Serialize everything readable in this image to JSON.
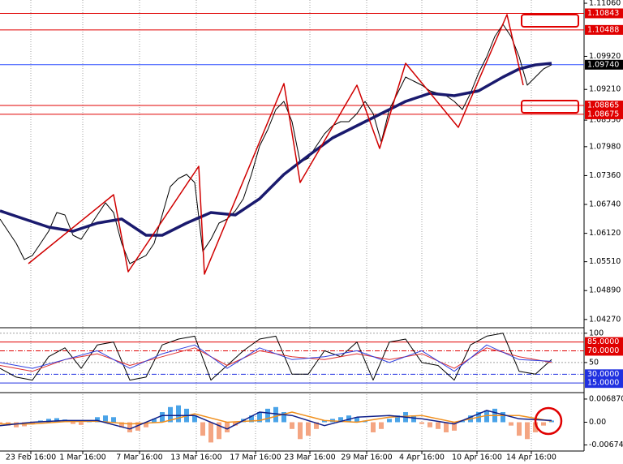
{
  "chart_data": [
    {
      "type": "line",
      "ylim": [
        1.0411,
        1.1113
      ],
      "yticks": [
        {
          "value": 1.1106,
          "label": "1.11060"
        },
        {
          "value": 1.0992,
          "label": "1.09920"
        },
        {
          "value": 1.0921,
          "label": "1.09210"
        },
        {
          "value": 1.0855,
          "label": "1.08550"
        },
        {
          "value": 1.0798,
          "label": "1.07980"
        },
        {
          "value": 1.0736,
          "label": "1.07360"
        },
        {
          "value": 1.0674,
          "label": "1.06740"
        },
        {
          "value": 1.0612,
          "label": "1.06120"
        },
        {
          "value": 1.0551,
          "label": "1.05510"
        },
        {
          "value": 1.0489,
          "label": "1.04890"
        },
        {
          "value": 1.0427,
          "label": "1.04270"
        }
      ],
      "levels": [
        {
          "value": 1.10843,
          "color": "#e00000",
          "text_color": "#ffffff"
        },
        {
          "value": 1.10488,
          "color": "#e00000",
          "text_color": "#ffffff"
        },
        {
          "value": 1.0974,
          "label": "1.09740",
          "color": "#3050ff",
          "box": "#000000",
          "text_color": "#ffffff"
        },
        {
          "value": 1.08865,
          "color": "#e00000",
          "text_color": "#ffffff"
        },
        {
          "value": 1.08675,
          "color": "#e00000",
          "text_color": "#ffffff"
        }
      ],
      "series": [
        {
          "color": "#000000",
          "width": 1,
          "x": [
            0,
            1,
            2,
            3,
            4,
            5,
            6,
            7,
            8,
            9,
            10,
            11,
            12,
            13,
            14,
            15,
            16,
            17,
            18,
            19,
            20,
            21,
            22,
            23,
            24,
            25,
            26,
            27,
            28,
            29,
            30,
            31,
            32,
            33,
            34,
            35,
            36,
            37,
            38,
            39,
            40,
            41,
            42,
            43,
            44,
            45,
            46,
            47,
            48,
            49,
            50,
            51,
            52,
            53,
            54,
            55,
            56,
            57,
            58,
            59,
            60,
            61,
            62,
            63,
            64,
            65,
            66,
            67,
            68
          ],
          "values": [
            1.06427,
            1.06166,
            1.05905,
            1.05557,
            1.05644,
            1.05905,
            1.06166,
            1.06567,
            1.06514,
            1.06079,
            1.05992,
            1.06253,
            1.06514,
            1.06776,
            1.06567,
            1.05905,
            1.05469,
            1.05557,
            1.05644,
            1.05905,
            1.06514,
            1.07124,
            1.07298,
            1.07385,
            1.07211,
            1.05731,
            1.05992,
            1.0634,
            1.06427,
            1.06601,
            1.06863,
            1.07385,
            1.07994,
            1.08343,
            1.08778,
            1.08953,
            1.08517,
            1.07646,
            1.07734,
            1.07994,
            1.08256,
            1.0843,
            1.08517,
            1.08517,
            1.08691,
            1.08953,
            1.08691,
            1.08082,
            1.08778,
            1.09127,
            1.09475,
            1.09388,
            1.09301,
            1.09179,
            1.09127,
            1.09075,
            1.08953,
            1.08778,
            1.09127,
            1.09562,
            1.09911,
            1.10346,
            1.10607,
            1.10346,
            1.09911,
            1.09301,
            1.09475,
            1.09649,
            1.0974
          ]
        },
        {
          "color": "#1a1a6e",
          "width": 3.5,
          "x": [
            0,
            3,
            6,
            9,
            12,
            15,
            18,
            20,
            23,
            26,
            29,
            32,
            35,
            38,
            41,
            44,
            47,
            50,
            53,
            56,
            59,
            62,
            64,
            66,
            68
          ],
          "values": [
            1.06602,
            1.06427,
            1.06253,
            1.06166,
            1.0634,
            1.06427,
            1.06079,
            1.06079,
            1.0634,
            1.06567,
            1.06514,
            1.06863,
            1.07385,
            1.07786,
            1.08169,
            1.0843,
            1.08691,
            1.08953,
            1.09127,
            1.09075,
            1.09179,
            1.09475,
            1.09649,
            1.09736,
            1.09771
          ]
        },
        {
          "color": "#d00000",
          "width": 1.5,
          "x": [
            3.5,
            14,
            15.8,
            24.5,
            25.2,
            35,
            37,
            44,
            46.8,
            50,
            56.5,
            62.5,
            64.5
          ],
          "values": [
            1.05469,
            1.0695,
            1.05295,
            1.07559,
            1.05243,
            1.09336,
            1.07211,
            1.09301,
            1.07943,
            1.09771,
            1.08395,
            1.10816,
            1.09301
          ]
        }
      ]
    },
    {
      "type": "line",
      "ylim": [
        0,
        108
      ],
      "yticks": [
        100,
        50
      ],
      "levels": [
        {
          "value": 85,
          "label": "85.0000",
          "color": "#e00000",
          "box": "#e00000",
          "text_color": "#ffffff"
        },
        {
          "value": 70,
          "label": "70.0000",
          "color": "#e00000",
          "box": "#e00000",
          "text_color": "#ffffff",
          "dash": "6 2 1 2"
        },
        {
          "value": 30,
          "label": "30.0000",
          "color": "#2030e0",
          "box": "#2030e0",
          "text_color": "#ffffff",
          "dash": "6 2 1 2"
        },
        {
          "value": 15,
          "label": "15.0000",
          "color": "#2030e0",
          "box": "#2030e0",
          "text_color": "#ffffff"
        }
      ],
      "series": [
        {
          "color": "#000000",
          "width": 1,
          "x": [
            0,
            2,
            4,
            6,
            8,
            10,
            12,
            14,
            16,
            18,
            20,
            22,
            24,
            26,
            28,
            30,
            32,
            34,
            36,
            38,
            40,
            42,
            44,
            46,
            48,
            50,
            52,
            54,
            56,
            58,
            60,
            62,
            64,
            66,
            68
          ],
          "values": [
            40,
            25,
            20,
            60,
            75,
            40,
            80,
            85,
            20,
            25,
            80,
            90,
            95,
            20,
            45,
            70,
            90,
            95,
            30,
            30,
            70,
            60,
            85,
            20,
            85,
            90,
            50,
            45,
            20,
            80,
            95,
            100,
            35,
            30,
            55
          ]
        },
        {
          "color": "#e03030",
          "width": 1,
          "x": [
            0,
            4,
            8,
            12,
            16,
            20,
            24,
            28,
            32,
            36,
            40,
            44,
            48,
            52,
            56,
            60,
            64,
            68
          ],
          "values": [
            45,
            35,
            55,
            65,
            45,
            60,
            75,
            45,
            70,
            60,
            55,
            65,
            55,
            65,
            40,
            75,
            60,
            50
          ]
        },
        {
          "color": "#3040e0",
          "width": 1,
          "x": [
            0,
            4,
            8,
            12,
            16,
            20,
            24,
            28,
            32,
            36,
            40,
            44,
            48,
            52,
            56,
            60,
            64,
            68
          ],
          "values": [
            50,
            40,
            55,
            70,
            40,
            65,
            80,
            40,
            75,
            55,
            60,
            70,
            50,
            70,
            35,
            80,
            55,
            52
          ]
        }
      ]
    },
    {
      "type": "macd",
      "ylim": [
        -0.0083,
        0.0083
      ],
      "yticks": [
        0.0068709,
        {
          "value": 0,
          "label": "0.00"
        },
        -0.0067446
      ],
      "xlim": [
        0,
        72
      ],
      "xticks": [
        {
          "value": 3.8,
          "label": "23 Feb 16:00"
        },
        {
          "value": 10.2,
          "label": "1 Mar 16:00"
        },
        {
          "value": 17.2,
          "label": "7 Mar 16:00"
        },
        {
          "value": 24.2,
          "label": "13 Mar 16:00"
        },
        {
          "value": 31.5,
          "label": "17 Mar 16:00"
        },
        {
          "value": 38.2,
          "label": "23 Mar 16:00"
        },
        {
          "value": 45.2,
          "label": "29 Mar 16:00"
        },
        {
          "value": 52,
          "label": "4 Apr 16:00"
        },
        {
          "value": 58.8,
          "label": "10 Apr 16:00"
        },
        {
          "value": 65.5,
          "label": "14 Apr 16:00"
        }
      ],
      "up_color": "#4aa3e8",
      "down_color": "#f4a582",
      "histogram": [
        -0.0005,
        -0.001,
        -0.0015,
        -0.0012,
        -0.0005,
        0.0005,
        0.001,
        0.0012,
        0.0008,
        -0.0005,
        -0.0008,
        0.0005,
        0.0015,
        0.002,
        0.0015,
        -0.0015,
        -0.003,
        -0.0025,
        -0.0015,
        0.001,
        0.003,
        0.0045,
        0.005,
        0.004,
        0.002,
        -0.004,
        -0.006,
        -0.005,
        -0.003,
        -0.001,
        0.001,
        0.002,
        0.003,
        0.004,
        0.0045,
        0.003,
        -0.002,
        -0.005,
        -0.004,
        -0.002,
        0.0005,
        0.001,
        0.0015,
        0.002,
        0.0015,
        0.0005,
        -0.003,
        -0.002,
        0.001,
        0.002,
        0.003,
        0.002,
        -0.0005,
        -0.0015,
        -0.002,
        -0.003,
        -0.0025,
        0.0005,
        0.002,
        0.003,
        0.0035,
        0.004,
        0.003,
        -0.001,
        -0.004,
        -0.005,
        -0.003,
        -0.001,
        0.0005
      ],
      "series": [
        {
          "color": "#f0901e",
          "width": 1.5,
          "x": [
            0,
            4,
            8,
            12,
            16,
            20,
            24,
            28,
            32,
            36,
            40,
            44,
            48,
            52,
            56,
            60,
            64,
            68
          ],
          "values": [
            -0.0005,
            -0.0005,
            0.0002,
            0.0003,
            -0.0005,
            0,
            0.0025,
            0,
            0.0005,
            0.003,
            0.0005,
            0,
            0.0015,
            0.002,
            0,
            0.002,
            0.002,
            0.0003
          ]
        },
        {
          "color": "#10208a",
          "width": 1.5,
          "x": [
            0,
            4,
            8,
            12,
            16,
            20,
            24,
            28,
            32,
            36,
            40,
            44,
            48,
            52,
            56,
            60,
            64,
            68
          ],
          "values": [
            -0.001,
            0,
            0.0005,
            0.0005,
            -0.002,
            0.002,
            0.002,
            -0.002,
            0.003,
            0.002,
            -0.001,
            0.0015,
            0.002,
            0.001,
            -0.0005,
            0.0035,
            0.001,
            0.0005
          ]
        }
      ]
    }
  ]
}
